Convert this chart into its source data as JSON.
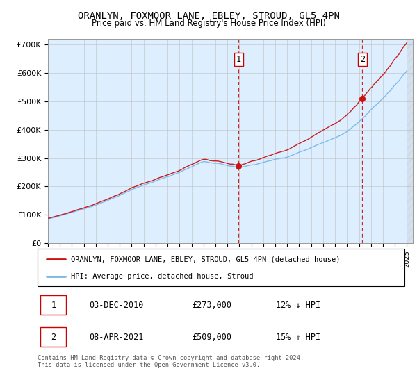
{
  "title": "ORANLYN, FOXMOOR LANE, EBLEY, STROUD, GL5 4PN",
  "subtitle": "Price paid vs. HM Land Registry's House Price Index (HPI)",
  "ylim": [
    0,
    720000
  ],
  "yticks": [
    0,
    100000,
    200000,
    300000,
    400000,
    500000,
    600000,
    700000
  ],
  "ytick_labels": [
    "£0",
    "£100K",
    "£200K",
    "£300K",
    "£400K",
    "£500K",
    "£600K",
    "£700K"
  ],
  "hpi_color": "#7ab8e8",
  "price_color": "#cc1111",
  "bg_color": "#ddeeff",
  "grid_color": "#c0c0c0",
  "vline_color": "#cc0000",
  "sale1_year": 2010.92,
  "sale1_price": 273000,
  "sale2_year": 2021.27,
  "sale2_price": 509000,
  "legend_label_price": "ORANLYN, FOXMOOR LANE, EBLEY, STROUD, GL5 4PN (detached house)",
  "legend_label_hpi": "HPI: Average price, detached house, Stroud",
  "table_row1": [
    "1",
    "03-DEC-2010",
    "£273,000",
    "12% ↓ HPI"
  ],
  "table_row2": [
    "2",
    "08-APR-2021",
    "£509,000",
    "15% ↑ HPI"
  ],
  "footnote": "Contains HM Land Registry data © Crown copyright and database right 2024.\nThis data is licensed under the Open Government Licence v3.0."
}
